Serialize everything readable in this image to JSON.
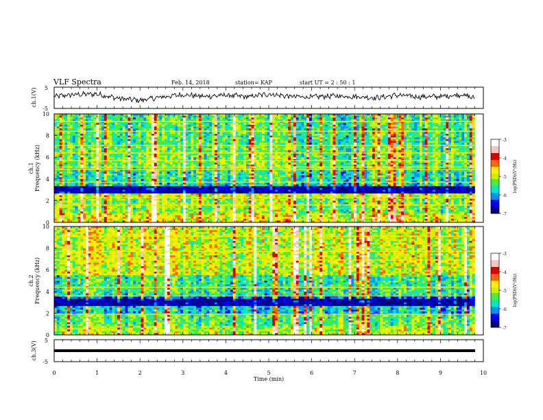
{
  "header": {
    "title": "VLF Spectra",
    "date": "Feb. 14, 2018",
    "station": "station= KAP",
    "start": "start  UT  =   2  : 50 : 1"
  },
  "colors": {
    "trace": "#000000",
    "colormap": [
      "#000080",
      "#0000ff",
      "#0090ff",
      "#00e5d0",
      "#44ee44",
      "#ccee00",
      "#ffee00",
      "#ff6600",
      "#e00000",
      "#ffc0c0",
      "#ffffff"
    ]
  },
  "chart_data": [
    {
      "id": "ch1-waveform",
      "type": "line",
      "ylabel": "ch.1(V)",
      "ylim": [
        -5,
        5
      ],
      "yticks": [
        "5",
        "-5"
      ],
      "xlim": [
        0,
        10
      ],
      "note_values": "approximate noisy waveform envelope",
      "x": [
        0,
        0.5,
        1,
        1.5,
        2,
        2.5,
        3,
        3.5,
        4,
        4.5,
        5,
        5.5,
        6,
        6.5,
        7,
        7.5,
        8,
        8.5,
        9,
        9.5,
        9.8
      ],
      "y": [
        0.5,
        1.5,
        1.8,
        -0.5,
        -1.5,
        0.2,
        1.5,
        0.5,
        1.2,
        0.3,
        1.8,
        0.5,
        0.2,
        0.8,
        0.5,
        -0.2,
        1.2,
        0.3,
        0.5,
        1.5,
        -0.5
      ]
    },
    {
      "id": "ch1-spectrogram",
      "type": "heatmap",
      "ylabel_lines": [
        "ch.1",
        "Frequency (kHz)"
      ],
      "ylim": [
        0,
        10
      ],
      "yticks": [
        "0",
        "2",
        "4",
        "6",
        "8",
        "10"
      ],
      "xlim": [
        0,
        9.8
      ],
      "colorbar": {
        "label": "log(PSD)(V²/Hz)",
        "range": [
          -7,
          -3
        ],
        "ticks": [
          "-3",
          "-4",
          "-5",
          "-6",
          "-7"
        ]
      },
      "bands_khz": [
        {
          "from": 0,
          "to": 0.8,
          "level": 0.55
        },
        {
          "from": 0.8,
          "to": 2.2,
          "level": 0.45
        },
        {
          "from": 2.2,
          "to": 2.7,
          "level": 0.5
        },
        {
          "from": 2.7,
          "to": 3.3,
          "level": 0.05
        },
        {
          "from": 3.3,
          "to": 3.6,
          "level": 0.3
        },
        {
          "from": 3.6,
          "to": 5.0,
          "level": 0.35
        },
        {
          "from": 5.0,
          "to": 7.0,
          "level": 0.42
        },
        {
          "from": 7.0,
          "to": 10.0,
          "level": 0.38
        }
      ],
      "lines_khz": [
        3.7,
        4.9,
        5.1,
        5.7,
        6.4,
        7.1,
        8.4,
        9.3,
        2.3,
        1.6
      ]
    },
    {
      "id": "ch2-spectrogram",
      "type": "heatmap",
      "ylabel_lines": [
        "ch.2",
        "Frequency (kHz)"
      ],
      "ylim": [
        0,
        10
      ],
      "yticks": [
        "0",
        "2",
        "4",
        "6",
        "8",
        "10"
      ],
      "xlim": [
        0,
        9.8
      ],
      "colorbar": {
        "label": "log(PSD)(V²/Hz)",
        "range": [
          -7,
          -3
        ],
        "ticks": [
          "-3",
          "-4",
          "-5",
          "-6",
          "-7"
        ]
      },
      "bands_khz": [
        {
          "from": 0,
          "to": 0.9,
          "level": 0.5
        },
        {
          "from": 0.9,
          "to": 1.8,
          "level": 0.42
        },
        {
          "from": 1.8,
          "to": 2.6,
          "level": 0.3
        },
        {
          "from": 2.6,
          "to": 3.3,
          "level": 0.05
        },
        {
          "from": 3.3,
          "to": 3.7,
          "level": 0.2
        },
        {
          "from": 3.7,
          "to": 5.5,
          "level": 0.38
        },
        {
          "from": 5.5,
          "to": 10.0,
          "level": 0.52
        }
      ],
      "lines_khz": [
        3.6,
        1.9,
        4.4,
        6.9,
        7.7,
        9.1
      ]
    },
    {
      "id": "ch3-waveform",
      "type": "line",
      "ylabel": "ch.3(V)",
      "ylim": [
        -5,
        5
      ],
      "yticks": [
        "5",
        "-5"
      ],
      "xlim": [
        0,
        10
      ],
      "x": [
        0,
        9.8
      ],
      "y": [
        0,
        0
      ],
      "xlabel": "Time  (min)",
      "xticks": [
        "0",
        "1",
        "2",
        "3",
        "4",
        "5",
        "6",
        "7",
        "8",
        "9",
        "10"
      ]
    }
  ]
}
